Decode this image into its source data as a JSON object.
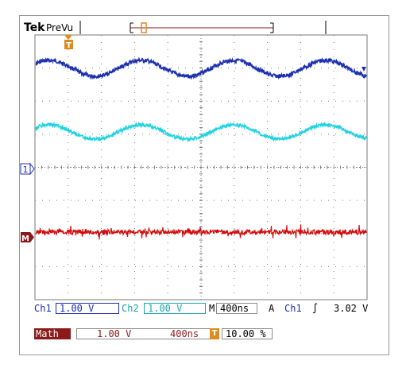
{
  "header": {
    "brand": "Tek",
    "mode": "PreVu"
  },
  "markers": {
    "trigger_label": "T",
    "ch1_marker": "1",
    "math_marker": "M"
  },
  "readouts": {
    "ch1_label": "Ch1",
    "ch1_scale": "1.00 V",
    "ch2_label": "Ch2",
    "ch2_scale": "1.00 V",
    "time_label": "M",
    "time_scale": "400ns",
    "trigger_mode": "A",
    "trigger_source": "Ch1",
    "trigger_slope": "∫",
    "trigger_level": "3.02 V",
    "math_label": "Math",
    "math_scale": "1.00 V",
    "math_time": "400ns",
    "trigger_pos_icon": "T",
    "trigger_position": "10.00 %"
  },
  "colors": {
    "ch1": "#1c2fb0",
    "ch2": "#22d3e0",
    "math": "#d40b0b",
    "trigger": "#e08a1e",
    "grid": "#7a7a7a"
  }
}
